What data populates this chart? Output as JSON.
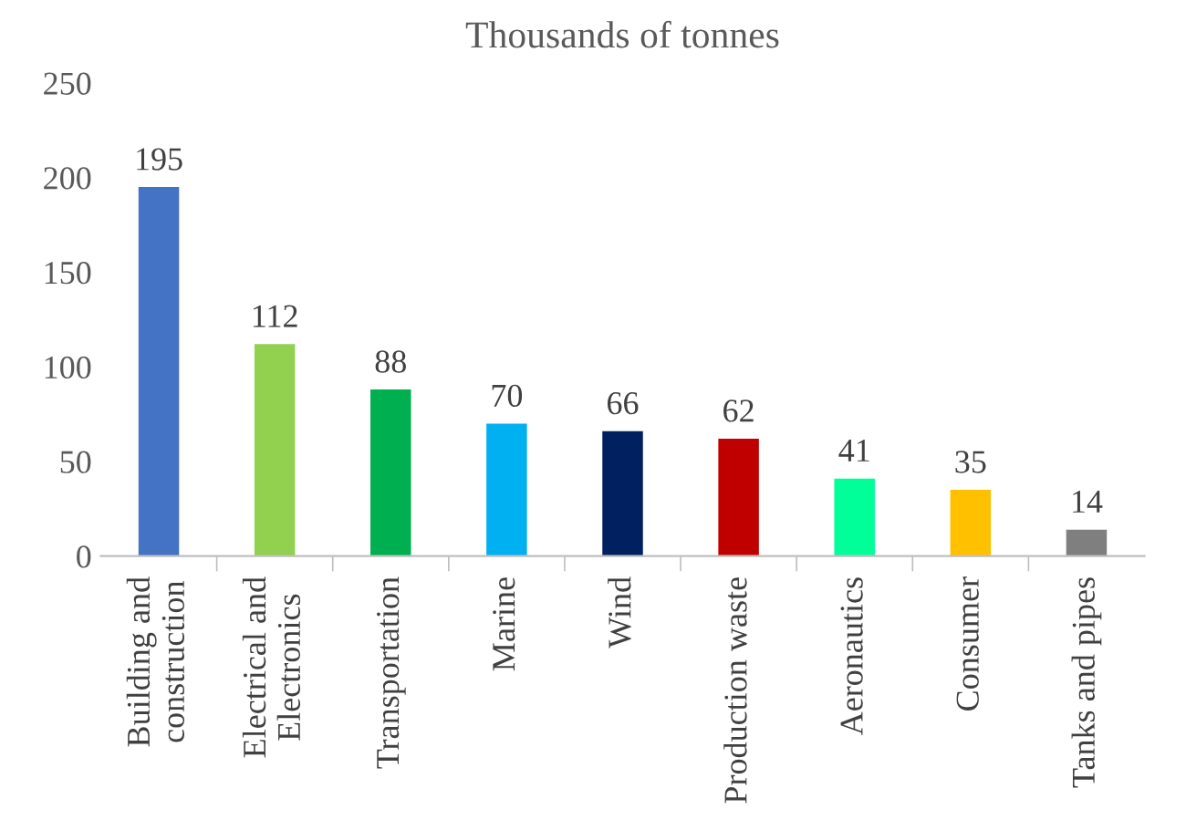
{
  "chart_data": {
    "type": "bar",
    "title": "Thousands of tonnes",
    "categories": [
      "Building and\nconstruction",
      "Electrical and\nElectronics",
      "Transportation",
      "Marine",
      "Wind",
      "Production waste",
      "Aeronautics",
      "Consumer",
      "Tanks and pipes"
    ],
    "values": [
      195,
      112,
      88,
      70,
      66,
      62,
      41,
      35,
      14
    ],
    "colors": [
      "#4472c4",
      "#92d050",
      "#00b050",
      "#00b0f0",
      "#002060",
      "#c00000",
      "#00ff99",
      "#ffc000",
      "#7f7f7f"
    ],
    "ylim": [
      0,
      250
    ],
    "yticks": [
      0,
      50,
      100,
      150,
      200,
      250
    ],
    "grid": false,
    "data_labels": true
  }
}
